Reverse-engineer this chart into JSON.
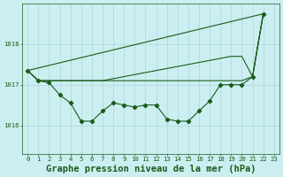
{
  "title": "Graphe pression niveau de la mer (hPa)",
  "background_color": "#cceef0",
  "grid_color": "#aad8da",
  "line_color": "#1a5c1a",
  "ylim": [
    1015.3,
    1019.0
  ],
  "yticks": [
    1016,
    1017,
    1018
  ],
  "xlim": [
    -0.5,
    23.5
  ],
  "xtick_labels": [
    "0",
    "1",
    "2",
    "3",
    "4",
    "5",
    "6",
    "7",
    "8",
    "9",
    "10",
    "11",
    "12",
    "13",
    "14",
    "15",
    "16",
    "17",
    "18",
    "19",
    "20",
    "21",
    "22",
    "23"
  ],
  "line_diagonal": {
    "x": [
      0,
      22
    ],
    "y": [
      1017.35,
      1018.75
    ]
  },
  "line_flat_high": {
    "x": [
      0,
      1,
      2,
      3,
      4,
      5,
      6,
      7,
      8,
      9,
      10,
      11,
      12,
      13,
      14,
      15,
      16,
      17,
      18,
      19,
      20,
      21,
      22
    ],
    "y": [
      1017.35,
      1017.1,
      1017.1,
      1017.1,
      1017.1,
      1017.1,
      1017.1,
      1017.1,
      1017.15,
      1017.2,
      1017.25,
      1017.3,
      1017.35,
      1017.4,
      1017.45,
      1017.5,
      1017.55,
      1017.6,
      1017.65,
      1017.7,
      1017.7,
      1017.2,
      1018.75
    ]
  },
  "line_flat_mid": {
    "x": [
      0,
      1,
      2,
      3,
      4,
      5,
      6,
      7,
      8,
      9,
      10,
      11,
      12,
      13,
      14,
      15,
      16,
      17,
      18,
      19,
      20,
      21,
      22
    ],
    "y": [
      1017.35,
      1017.1,
      1017.1,
      1017.1,
      1017.1,
      1017.1,
      1017.1,
      1017.1,
      1017.1,
      1017.1,
      1017.1,
      1017.1,
      1017.1,
      1017.1,
      1017.1,
      1017.1,
      1017.1,
      1017.1,
      1017.1,
      1017.1,
      1017.1,
      1017.2,
      1018.75
    ]
  },
  "main_line": {
    "x": [
      0,
      1,
      2,
      3,
      4,
      5,
      6,
      7,
      8,
      9,
      10,
      11,
      12,
      13,
      14,
      15,
      16,
      17,
      18,
      19,
      20,
      21,
      22
    ],
    "y": [
      1017.35,
      1017.1,
      1017.05,
      1016.75,
      1016.55,
      1016.1,
      1016.1,
      1016.35,
      1016.55,
      1016.5,
      1016.45,
      1016.5,
      1016.5,
      1016.15,
      1016.1,
      1016.1,
      1016.35,
      1016.6,
      1017.0,
      1017.0,
      1017.0,
      1017.2,
      1018.75
    ]
  },
  "linewidth": 0.8,
  "markersize": 2.2,
  "title_fontsize": 7.5,
  "tick_fontsize": 5.2
}
